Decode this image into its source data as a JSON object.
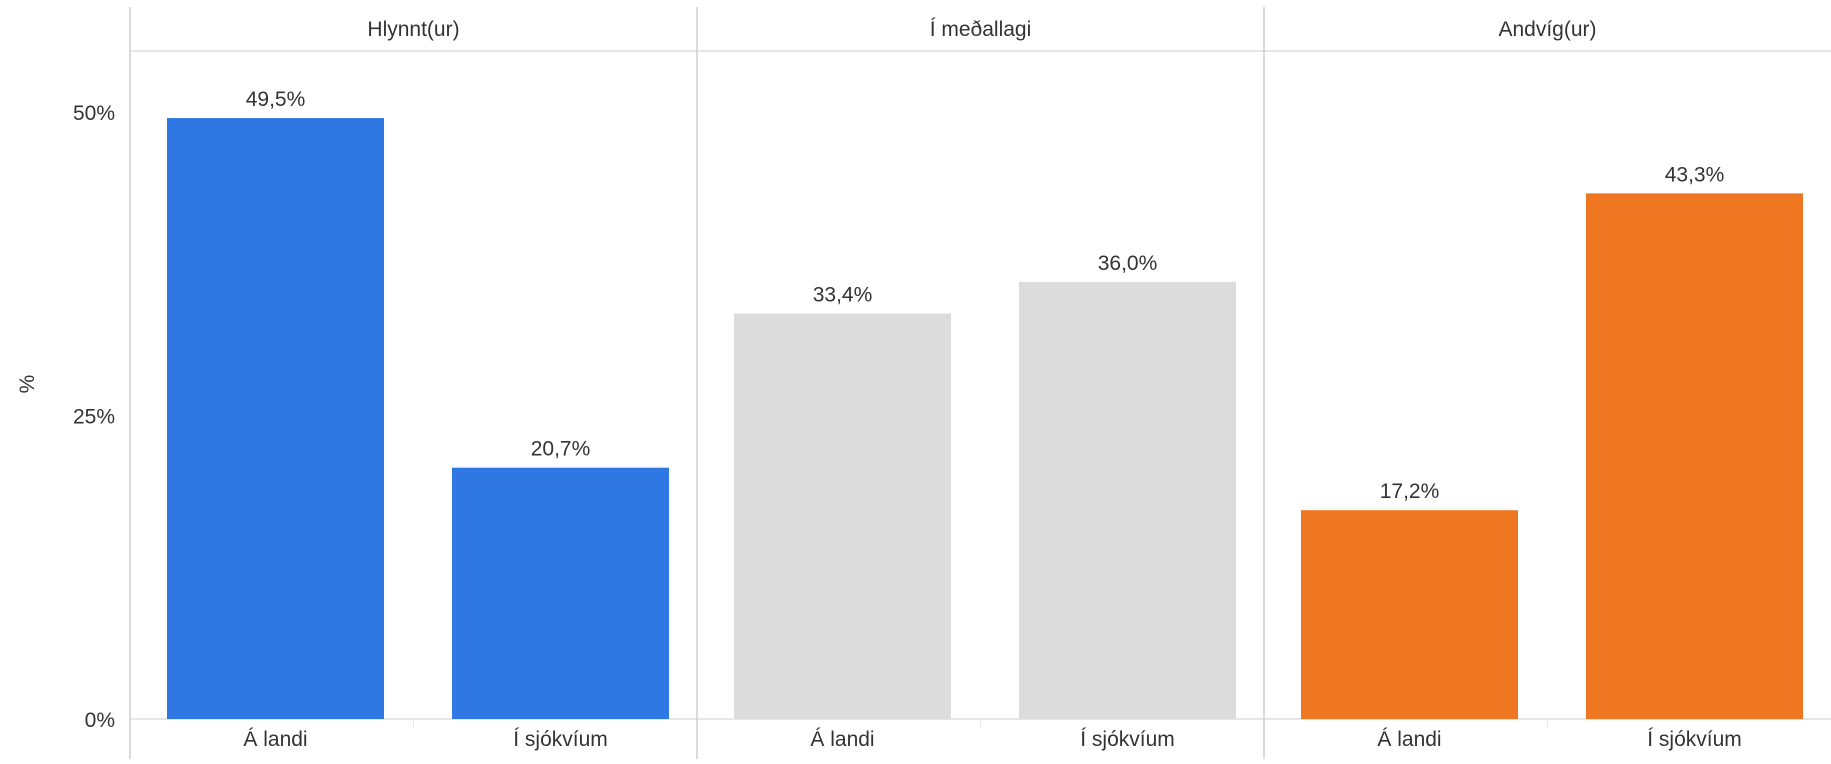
{
  "chart_data": {
    "type": "bar",
    "ylabel": "%",
    "ylim": [
      0,
      50
    ],
    "yticks": [
      {
        "value": 0,
        "label": "0%"
      },
      {
        "value": 25,
        "label": "25%"
      },
      {
        "value": 50,
        "label": "50%"
      }
    ],
    "categories": [
      "Á landi",
      "Í sjókvíum"
    ],
    "panels": [
      {
        "name": "Hlynnt(ur)",
        "color": "#2f78e4",
        "values": [
          49.5,
          20.7
        ],
        "labels": [
          "49,5%",
          "20,7%"
        ]
      },
      {
        "name": "Í meðallagi",
        "color": "#dcdcdc",
        "values": [
          33.4,
          36.0
        ],
        "labels": [
          "33,4%",
          "36,0%"
        ]
      },
      {
        "name": "Andvíg(ur)",
        "color": "#ef7722",
        "values": [
          17.2,
          43.3
        ],
        "labels": [
          "17,2%",
          "43,3%"
        ]
      }
    ],
    "grid": false,
    "legend": "none"
  }
}
